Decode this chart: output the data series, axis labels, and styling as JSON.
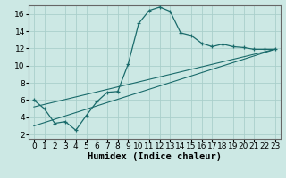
{
  "xlabel": "Humidex (Indice chaleur)",
  "ylabel": "",
  "background_color": "#cce8e4",
  "grid_color": "#aacfcb",
  "line_color": "#1a6b6b",
  "xlim": [
    -0.5,
    23.5
  ],
  "ylim": [
    1.5,
    17.0
  ],
  "xticks": [
    0,
    1,
    2,
    3,
    4,
    5,
    6,
    7,
    8,
    9,
    10,
    11,
    12,
    13,
    14,
    15,
    16,
    17,
    18,
    19,
    20,
    21,
    22,
    23
  ],
  "yticks": [
    2,
    4,
    6,
    8,
    10,
    12,
    14,
    16
  ],
  "curve1_x": [
    0,
    1,
    2,
    3,
    4,
    5,
    6,
    7,
    8,
    9,
    10,
    11,
    12,
    13,
    14,
    15,
    16,
    17,
    18,
    19,
    20,
    21,
    22,
    23
  ],
  "curve1_y": [
    6.0,
    5.0,
    3.3,
    3.5,
    2.5,
    4.2,
    5.8,
    6.9,
    7.0,
    10.2,
    14.9,
    16.4,
    16.8,
    16.3,
    13.8,
    13.5,
    12.6,
    12.2,
    12.5,
    12.2,
    12.1,
    11.9,
    11.9,
    11.9
  ],
  "line2_x": [
    0,
    23
  ],
  "line2_y": [
    5.2,
    11.9
  ],
  "line3_x": [
    0,
    23
  ],
  "line3_y": [
    3.0,
    11.9
  ],
  "fontsize_xlabel": 7.5,
  "tick_fontsize": 6.5
}
